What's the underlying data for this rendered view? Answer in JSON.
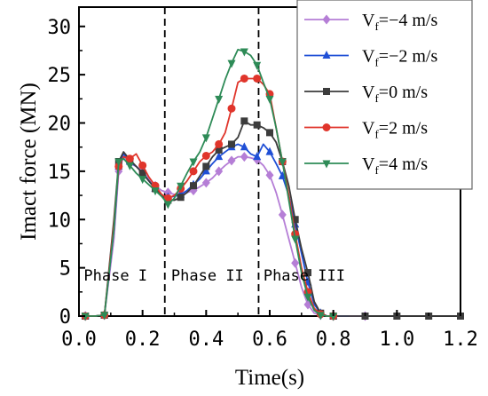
{
  "chart_data": {
    "type": "line",
    "xlabel": "Time(s)",
    "ylabel": "Imact force (MN)",
    "xlim": [
      0,
      1.2
    ],
    "ylim": [
      0,
      32
    ],
    "x_ticks": [
      "0.0",
      "0.2",
      "0.4",
      "0.6",
      "0.8",
      "1.0",
      "1.2"
    ],
    "x_tick_values": [
      0,
      0.2,
      0.4,
      0.6,
      0.8,
      1.0,
      1.2
    ],
    "y_ticks": [
      "0",
      "5",
      "10",
      "15",
      "20",
      "25",
      "30"
    ],
    "y_tick_values": [
      0,
      5,
      10,
      15,
      20,
      25,
      30
    ],
    "grid": false,
    "legend_position": "top-right",
    "phase_boundaries": [
      0.27,
      0.565
    ],
    "phase_labels": [
      {
        "text": "Phase  I",
        "x": 0.015
      },
      {
        "text": "Phase  II",
        "x": 0.29
      },
      {
        "text": "Phase  III",
        "x": 0.58
      }
    ],
    "series": [
      {
        "legend_main": "V",
        "legend_sub": "f",
        "legend_rest": "=−4 m/s",
        "color": "#b57ed6",
        "marker": "diamond",
        "x": [
          0.02,
          0.05,
          0.08,
          0.11,
          0.125,
          0.14,
          0.16,
          0.18,
          0.2,
          0.22,
          0.24,
          0.26,
          0.28,
          0.3,
          0.32,
          0.34,
          0.36,
          0.38,
          0.4,
          0.42,
          0.44,
          0.46,
          0.48,
          0.5,
          0.52,
          0.54,
          0.56,
          0.58,
          0.6,
          0.62,
          0.64,
          0.66,
          0.68,
          0.7,
          0.72,
          0.74,
          0.76,
          0.78,
          0.8,
          0.85,
          0.9
        ],
        "y": [
          0,
          0,
          0.1,
          8,
          15,
          16.5,
          15.8,
          15.5,
          15,
          14.2,
          13.5,
          13,
          12.8,
          12.6,
          12.6,
          12.8,
          13,
          13.4,
          13.8,
          14.3,
          15,
          15.6,
          16.1,
          16.5,
          16.5,
          16.4,
          16.2,
          15.6,
          14.6,
          12.8,
          10.5,
          8,
          5.5,
          3,
          1.2,
          0.3,
          0.1,
          0,
          0,
          0,
          0
        ],
        "marker_every": 2
      },
      {
        "legend_main": "V",
        "legend_sub": "f",
        "legend_rest": "=−2 m/s",
        "color": "#1f4fd6",
        "marker": "triangle-up",
        "x": [
          0.02,
          0.05,
          0.08,
          0.11,
          0.125,
          0.14,
          0.16,
          0.18,
          0.2,
          0.22,
          0.24,
          0.26,
          0.28,
          0.3,
          0.32,
          0.34,
          0.36,
          0.38,
          0.4,
          0.42,
          0.44,
          0.46,
          0.48,
          0.5,
          0.52,
          0.54,
          0.56,
          0.58,
          0.6,
          0.62,
          0.64,
          0.66,
          0.68,
          0.7,
          0.72,
          0.74,
          0.76,
          0.78,
          0.8,
          0.85
        ],
        "y": [
          0,
          0,
          0.1,
          9,
          15.5,
          16.8,
          16,
          15.5,
          14.8,
          14,
          13.2,
          12.5,
          12.3,
          12.4,
          12.6,
          13,
          13.6,
          14.2,
          15,
          15.8,
          16.5,
          17,
          17.5,
          17.8,
          17.5,
          16.8,
          16.5,
          17.8,
          17,
          15.8,
          14.5,
          12.5,
          9.5,
          6.5,
          3.5,
          1.2,
          0.3,
          0,
          0,
          0
        ],
        "marker_every": 2
      },
      {
        "legend_main": "V",
        "legend_sub": "f",
        "legend_rest": "=0 m/s",
        "color": "#3c3c3c",
        "marker": "square",
        "x": [
          0.02,
          0.05,
          0.08,
          0.11,
          0.125,
          0.14,
          0.16,
          0.18,
          0.2,
          0.22,
          0.24,
          0.26,
          0.28,
          0.3,
          0.32,
          0.34,
          0.36,
          0.38,
          0.4,
          0.42,
          0.44,
          0.46,
          0.48,
          0.5,
          0.52,
          0.54,
          0.56,
          0.58,
          0.6,
          0.62,
          0.64,
          0.66,
          0.68,
          0.7,
          0.72,
          0.74,
          0.76,
          0.78,
          0.8,
          0.85,
          0.9,
          0.95,
          1.0,
          1.05,
          1.1,
          1.15,
          1.2
        ],
        "y": [
          0,
          0,
          0.1,
          10,
          16,
          17,
          16.2,
          15.5,
          14.8,
          14,
          13.2,
          12.5,
          12,
          12,
          12.3,
          12.8,
          13.5,
          14.5,
          15.5,
          16.5,
          17.2,
          17.5,
          17.8,
          18.5,
          20.2,
          19.8,
          19.8,
          19.5,
          19,
          18,
          16,
          13.5,
          10,
          7,
          4.5,
          1.5,
          0.3,
          0,
          0,
          0,
          0,
          0,
          0,
          0,
          0,
          0,
          0
        ],
        "marker_every": 2
      },
      {
        "legend_main": "V",
        "legend_sub": "f",
        "legend_rest": "=2 m/s",
        "color": "#e0352b",
        "marker": "circle",
        "x": [
          0.02,
          0.05,
          0.08,
          0.11,
          0.125,
          0.14,
          0.16,
          0.18,
          0.2,
          0.22,
          0.24,
          0.26,
          0.28,
          0.3,
          0.32,
          0.34,
          0.36,
          0.38,
          0.4,
          0.42,
          0.44,
          0.46,
          0.48,
          0.5,
          0.52,
          0.54,
          0.56,
          0.58,
          0.6,
          0.62,
          0.64,
          0.66,
          0.68,
          0.7,
          0.72,
          0.74,
          0.76,
          0.78,
          0.8
        ],
        "y": [
          0,
          0,
          0.1,
          9.5,
          15.5,
          16.5,
          16.3,
          16.8,
          15.6,
          14.4,
          13.5,
          12.6,
          12.2,
          12.5,
          13.2,
          14,
          15,
          16,
          16.6,
          17,
          17.8,
          19,
          21.5,
          24.2,
          24.6,
          24.6,
          24.6,
          24,
          23,
          19.5,
          16,
          12.5,
          8.5,
          5,
          2.5,
          0.8,
          0.2,
          0,
          0
        ],
        "marker_every": 2
      },
      {
        "legend_main": "V",
        "legend_sub": "f",
        "legend_rest": "=4 m/s",
        "color": "#2e8b57",
        "marker": "triangle-down",
        "x": [
          0.02,
          0.05,
          0.08,
          0.11,
          0.125,
          0.14,
          0.16,
          0.18,
          0.2,
          0.22,
          0.24,
          0.26,
          0.28,
          0.3,
          0.32,
          0.34,
          0.36,
          0.38,
          0.4,
          0.42,
          0.44,
          0.46,
          0.48,
          0.5,
          0.52,
          0.54,
          0.56,
          0.58,
          0.6,
          0.62,
          0.64,
          0.66,
          0.68,
          0.7,
          0.72,
          0.74,
          0.76,
          0.78,
          0.8
        ],
        "y": [
          0,
          0,
          0.1,
          9,
          16,
          16.3,
          15.6,
          14.8,
          14.2,
          13.6,
          13,
          12.4,
          11.6,
          12.2,
          13.5,
          14.8,
          16,
          17,
          18.5,
          20.5,
          22.5,
          24.5,
          26.2,
          27.6,
          27.4,
          27,
          26,
          24.2,
          22.5,
          19.5,
          16,
          12,
          8,
          4.5,
          2,
          0.6,
          0.1,
          0,
          0
        ],
        "marker_every": 2
      }
    ]
  }
}
